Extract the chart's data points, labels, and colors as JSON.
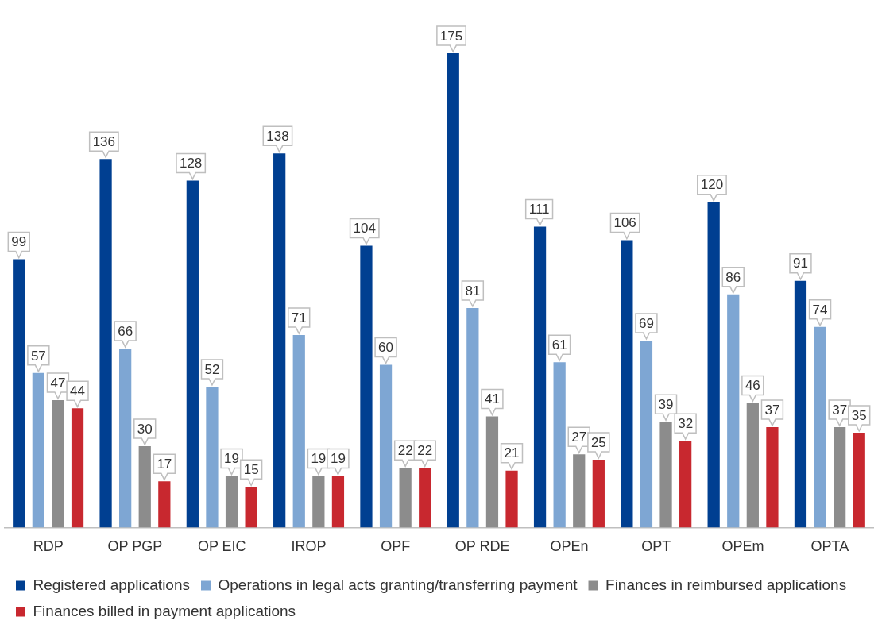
{
  "chart_data": {
    "type": "bar",
    "categories": [
      "RDP",
      "OP PGP",
      "OP EIC",
      "IROP",
      "OPF",
      "OP RDE",
      "OPEn",
      "OPT",
      "OPEm",
      "OPTA"
    ],
    "series": [
      {
        "name": "Registered applications",
        "color": "#003f91",
        "values": [
          99,
          136,
          128,
          138,
          104,
          175,
          111,
          106,
          120,
          91
        ]
      },
      {
        "name": "Operations in legal acts granting/transferring payment",
        "color": "#7ea6d3",
        "values": [
          57,
          66,
          52,
          71,
          60,
          81,
          61,
          69,
          86,
          74
        ]
      },
      {
        "name": "Finances in reimbursed applications",
        "color": "#8c8c8c",
        "values": [
          47,
          30,
          19,
          19,
          22,
          41,
          27,
          39,
          46,
          37
        ]
      },
      {
        "name": "Finances billed in payment applications",
        "color": "#c8282f",
        "values": [
          44,
          17,
          15,
          19,
          22,
          21,
          25,
          32,
          37,
          35
        ]
      }
    ],
    "tick_labels": "x",
    "grid": false,
    "legend": "bottom",
    "data_labels": true
  }
}
